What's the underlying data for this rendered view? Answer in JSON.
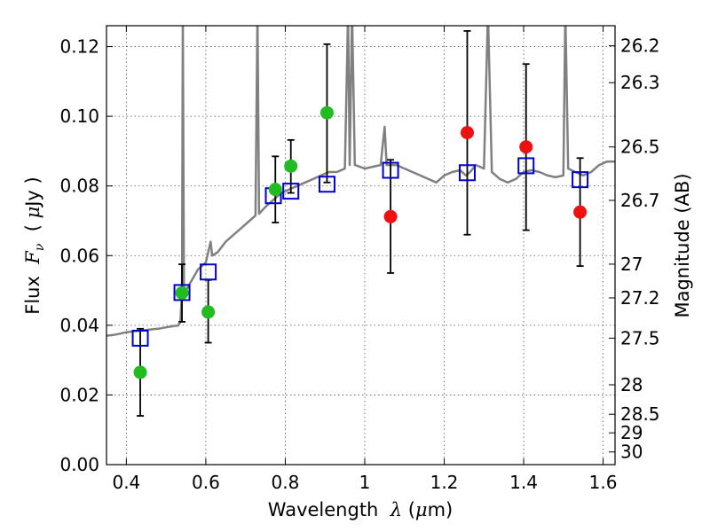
{
  "chart_data": {
    "type": "scatter",
    "title": "",
    "xlabel": {
      "prefix": "Wavelength  ",
      "symbol": "λ",
      "open": " (",
      "unit_mu": "μ",
      "unit_rest": "m)"
    },
    "ylabel": {
      "prefix": "Flux  ",
      "symbol": "F",
      "sub": "ν",
      "open": "  ( ",
      "unit_mu": "μ",
      "unit_rest": "Jy )"
    },
    "y2label": "Magnitude (AB)",
    "xlim": [
      0.35,
      1.63
    ],
    "ylim": [
      0.0,
      0.126
    ],
    "grid": true,
    "x_ticks": [
      {
        "v": 0.4,
        "label": "0.4"
      },
      {
        "v": 0.6,
        "label": "0.6"
      },
      {
        "v": 0.8,
        "label": "0.8"
      },
      {
        "v": 1.0,
        "label": "1"
      },
      {
        "v": 1.2,
        "label": "1.2"
      },
      {
        "v": 1.4,
        "label": "1.4"
      },
      {
        "v": 1.6,
        "label": "1.6"
      }
    ],
    "y_ticks": [
      {
        "v": 0.0,
        "label": "0.00"
      },
      {
        "v": 0.02,
        "label": "0.02"
      },
      {
        "v": 0.04,
        "label": "0.04"
      },
      {
        "v": 0.06,
        "label": "0.06"
      },
      {
        "v": 0.08,
        "label": "0.08"
      },
      {
        "v": 0.1,
        "label": "0.10"
      },
      {
        "v": 0.12,
        "label": "0.12"
      }
    ],
    "y2_ticks": [
      {
        "v": 26.2,
        "label": "26.2"
      },
      {
        "v": 26.3,
        "label": "26.3"
      },
      {
        "v": 26.5,
        "label": "26.5"
      },
      {
        "v": 26.7,
        "label": "26.7"
      },
      {
        "v": 27,
        "label": "27"
      },
      {
        "v": 27.2,
        "label": "27.2"
      },
      {
        "v": 27.5,
        "label": "27.5"
      },
      {
        "v": 28,
        "label": "28"
      },
      {
        "v": 28.5,
        "label": "28.5"
      },
      {
        "v": 29,
        "label": "29"
      },
      {
        "v": 30,
        "label": "30"
      }
    ],
    "colors": {
      "model": "#808080",
      "box": "#0000cc",
      "green": "#22bb22",
      "red": "#ee1111",
      "errorbar": "#000000"
    },
    "observed_points": [
      {
        "x": 0.435,
        "y": 0.0265,
        "color": "green",
        "err_lo": 0.014,
        "err_hi": 0.039
      },
      {
        "x": 0.54,
        "y": 0.0493,
        "color": "green",
        "err_lo": 0.041,
        "err_hi": 0.0575
      },
      {
        "x": 0.606,
        "y": 0.0438,
        "color": "green",
        "err_lo": 0.035,
        "err_hi": 0.053
      },
      {
        "x": 0.775,
        "y": 0.079,
        "color": "green",
        "err_lo": 0.0695,
        "err_hi": 0.0885
      },
      {
        "x": 0.814,
        "y": 0.0857,
        "color": "green",
        "err_lo": 0.078,
        "err_hi": 0.0932
      },
      {
        "x": 0.905,
        "y": 0.101,
        "color": "green",
        "err_lo": 0.081,
        "err_hi": 0.1207
      },
      {
        "x": 1.065,
        "y": 0.0712,
        "color": "red",
        "err_lo": 0.055,
        "err_hi": 0.0875
      },
      {
        "x": 1.258,
        "y": 0.0953,
        "color": "red",
        "err_lo": 0.066,
        "err_hi": 0.1245
      },
      {
        "x": 1.406,
        "y": 0.0912,
        "color": "red",
        "err_lo": 0.0673,
        "err_hi": 0.115
      },
      {
        "x": 1.542,
        "y": 0.0725,
        "color": "red",
        "err_lo": 0.057,
        "err_hi": 0.088
      }
    ],
    "model_boxes": [
      {
        "x": 0.435,
        "y": 0.0363
      },
      {
        "x": 0.54,
        "y": 0.0494
      },
      {
        "x": 0.606,
        "y": 0.0553
      },
      {
        "x": 0.77,
        "y": 0.0772
      },
      {
        "x": 0.814,
        "y": 0.0785
      },
      {
        "x": 0.905,
        "y": 0.0805
      },
      {
        "x": 1.065,
        "y": 0.0845
      },
      {
        "x": 1.258,
        "y": 0.0838
      },
      {
        "x": 1.406,
        "y": 0.0858
      },
      {
        "x": 1.542,
        "y": 0.0818
      }
    ],
    "model_spectrum": [
      [
        0.35,
        0.037
      ],
      [
        0.365,
        0.0372
      ],
      [
        0.38,
        0.0375
      ],
      [
        0.4,
        0.038
      ],
      [
        0.42,
        0.0383
      ],
      [
        0.44,
        0.0385
      ],
      [
        0.46,
        0.0388
      ],
      [
        0.48,
        0.039
      ],
      [
        0.5,
        0.0394
      ],
      [
        0.52,
        0.0398
      ],
      [
        0.53,
        0.0399
      ],
      [
        0.536,
        0.041
      ],
      [
        0.54,
        0.05
      ],
      [
        0.542,
        0.13
      ],
      [
        0.545,
        0.048
      ],
      [
        0.55,
        0.05
      ],
      [
        0.56,
        0.052
      ],
      [
        0.58,
        0.056
      ],
      [
        0.6,
        0.058
      ],
      [
        0.612,
        0.064
      ],
      [
        0.616,
        0.06
      ],
      [
        0.63,
        0.061
      ],
      [
        0.65,
        0.064
      ],
      [
        0.67,
        0.066
      ],
      [
        0.69,
        0.068
      ],
      [
        0.71,
        0.07
      ],
      [
        0.725,
        0.0715
      ],
      [
        0.73,
        0.13
      ],
      [
        0.734,
        0.072
      ],
      [
        0.75,
        0.074
      ],
      [
        0.77,
        0.076
      ],
      [
        0.79,
        0.078
      ],
      [
        0.81,
        0.079
      ],
      [
        0.83,
        0.08
      ],
      [
        0.85,
        0.081
      ],
      [
        0.87,
        0.082
      ],
      [
        0.89,
        0.083
      ],
      [
        0.91,
        0.084
      ],
      [
        0.93,
        0.084
      ],
      [
        0.95,
        0.085
      ],
      [
        0.958,
        0.13
      ],
      [
        0.962,
        0.086
      ],
      [
        0.968,
        0.13
      ],
      [
        0.975,
        0.086
      ],
      [
        1.0,
        0.085
      ],
      [
        1.02,
        0.0855
      ],
      [
        1.04,
        0.086
      ],
      [
        1.05,
        0.097
      ],
      [
        1.055,
        0.086
      ],
      [
        1.08,
        0.086
      ],
      [
        1.1,
        0.085
      ],
      [
        1.12,
        0.084
      ],
      [
        1.14,
        0.083
      ],
      [
        1.16,
        0.082
      ],
      [
        1.18,
        0.081
      ],
      [
        1.2,
        0.083
      ],
      [
        1.22,
        0.084
      ],
      [
        1.24,
        0.0845
      ],
      [
        1.255,
        0.083
      ],
      [
        1.265,
        0.084
      ],
      [
        1.28,
        0.086
      ],
      [
        1.3,
        0.085
      ],
      [
        1.31,
        0.13
      ],
      [
        1.32,
        0.084
      ],
      [
        1.34,
        0.082
      ],
      [
        1.36,
        0.081
      ],
      [
        1.38,
        0.082
      ],
      [
        1.4,
        0.084
      ],
      [
        1.42,
        0.0845
      ],
      [
        1.44,
        0.084
      ],
      [
        1.46,
        0.083
      ],
      [
        1.48,
        0.0825
      ],
      [
        1.5,
        0.083
      ],
      [
        1.505,
        0.13
      ],
      [
        1.512,
        0.085
      ],
      [
        1.53,
        0.084
      ],
      [
        1.55,
        0.083
      ],
      [
        1.57,
        0.084
      ],
      [
        1.59,
        0.086
      ],
      [
        1.61,
        0.087
      ],
      [
        1.63,
        0.087
      ]
    ]
  }
}
